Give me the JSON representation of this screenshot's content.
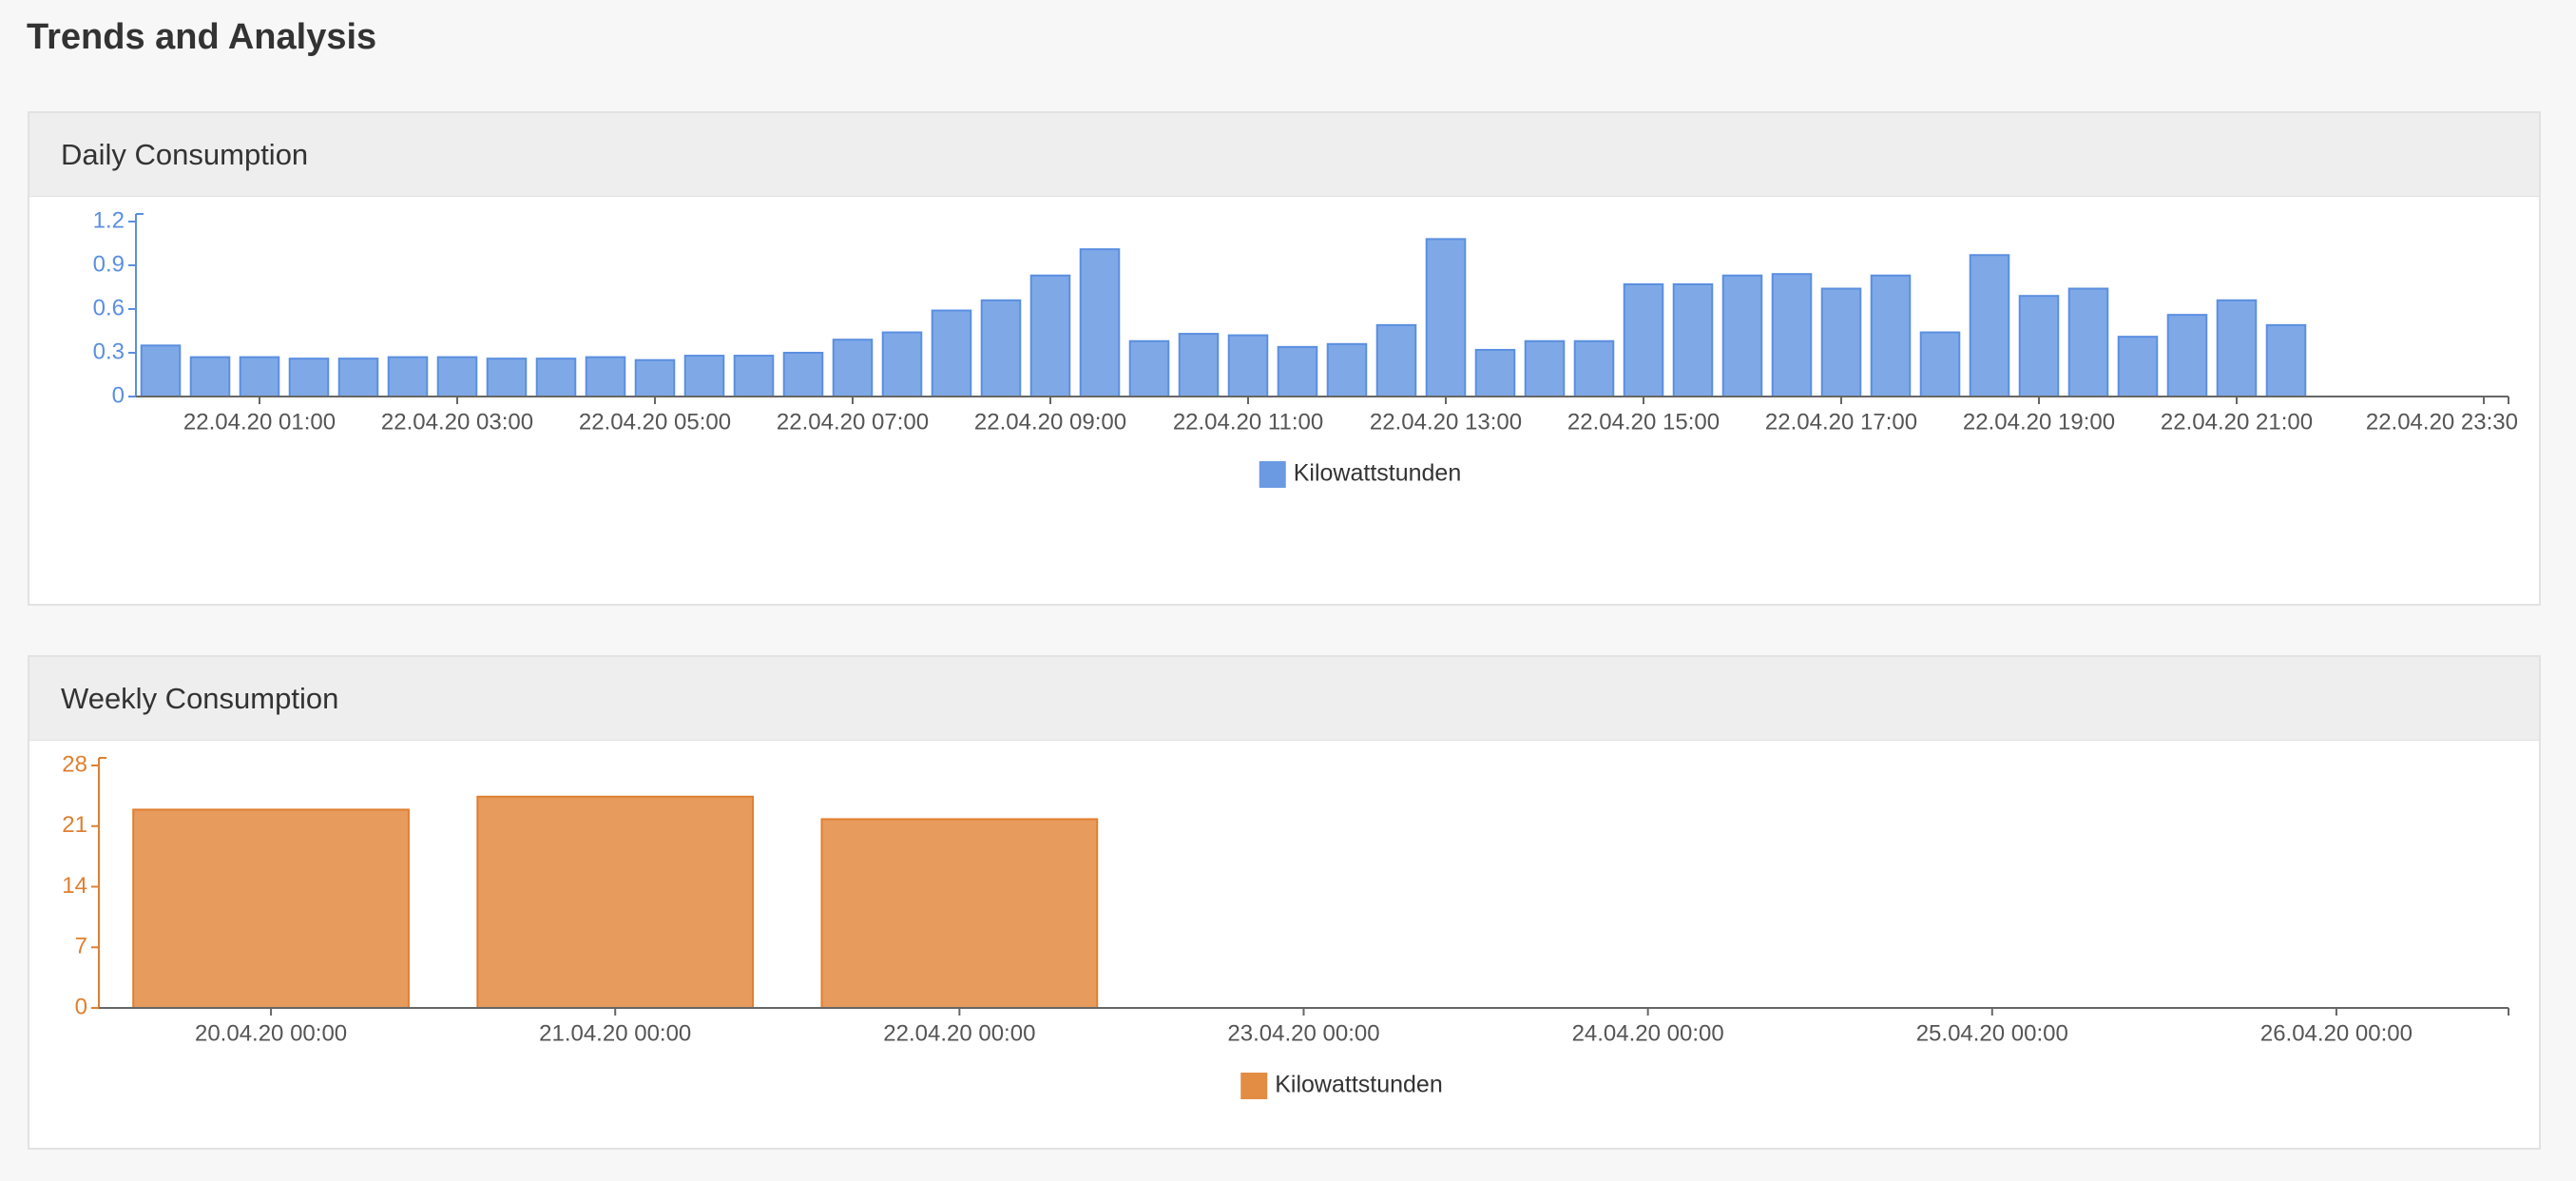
{
  "title": "Trends and Analysis",
  "chart_data": [
    {
      "type": "bar",
      "title": "Daily Consumption",
      "categories": [
        null,
        null,
        "22.04.20 01:00",
        null,
        null,
        null,
        "22.04.20 03:00",
        null,
        null,
        null,
        "22.04.20 05:00",
        null,
        null,
        null,
        "22.04.20 07:00",
        null,
        null,
        null,
        "22.04.20 09:00",
        null,
        null,
        null,
        "22.04.20 11:00",
        null,
        null,
        null,
        "22.04.20 13:00",
        null,
        null,
        null,
        "22.04.20 15:00",
        null,
        null,
        null,
        "22.04.20 17:00",
        null,
        null,
        null,
        "22.04.20 19:00",
        null,
        null,
        null,
        "22.04.20 21:00",
        null,
        null,
        null,
        null,
        "22.04.20 23:30"
      ],
      "series": [
        {
          "name": "Kilowattstunden",
          "color": "#5b8fe0",
          "values": [
            0.35,
            0.27,
            0.27,
            0.26,
            0.26,
            0.27,
            0.27,
            0.26,
            0.26,
            0.27,
            0.25,
            0.28,
            0.28,
            0.3,
            0.39,
            0.44,
            0.59,
            0.66,
            0.83,
            1.01,
            0.38,
            0.43,
            0.42,
            0.34,
            0.36,
            0.49,
            1.08,
            0.32,
            0.38,
            0.38,
            0.77,
            0.77,
            0.83,
            0.84,
            0.74,
            0.83,
            0.44,
            0.97,
            0.69,
            0.74,
            0.41,
            0.56,
            0.66,
            0.49,
            null,
            null,
            null,
            null
          ]
        }
      ],
      "ylim": [
        0,
        1.2
      ],
      "yticks": [
        0,
        0.3,
        0.6,
        0.9,
        1.2
      ],
      "legend": "bottom"
    },
    {
      "type": "bar",
      "title": "Weekly Consumption",
      "categories": [
        "20.04.20 00:00",
        "21.04.20 00:00",
        "22.04.20 00:00",
        "23.04.20 00:00",
        "24.04.20 00:00",
        "25.04.20 00:00",
        "26.04.20 00:00"
      ],
      "series": [
        {
          "name": "Kilowattstunden",
          "color": "#e07f30",
          "values": [
            22.9,
            24.4,
            21.8,
            null,
            null,
            null,
            null
          ]
        }
      ],
      "ylim": [
        0,
        28
      ],
      "yticks": [
        0,
        7,
        14,
        21,
        28
      ],
      "legend": "bottom"
    }
  ]
}
